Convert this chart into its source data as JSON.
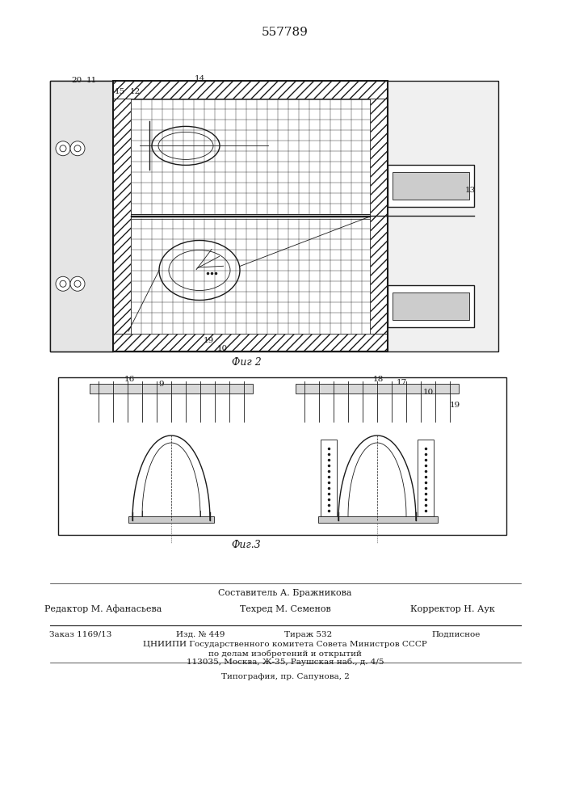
{
  "patent_number": "557789",
  "fig2_caption": "Фиг 2",
  "fig3_caption": "Фиг.3",
  "bg_color": "#ffffff",
  "line_color": "#1a1a1a",
  "footer_line1": "Составитель А. Бражникова",
  "footer_line2_left": "Редактор М. Афанасьева",
  "footer_line2_mid": "Техред М. Семенов",
  "footer_line2_right": "Корректор Н. Аук",
  "footer_line3_1": "Заказ 1169/13",
  "footer_line3_2": "Изд. № 449",
  "footer_line3_3": "Тираж 532",
  "footer_line3_4": "Подписное",
  "footer_line4": "ЦНИИПИ Государственного комитета Совета Министров СССР",
  "footer_line5": "по делам изобретений и открытий",
  "footer_line6": "113035, Москва, Ж-35, Раушская наб., д. 4/5",
  "footer_line7": "Типография, пр. Сапунова, 2"
}
